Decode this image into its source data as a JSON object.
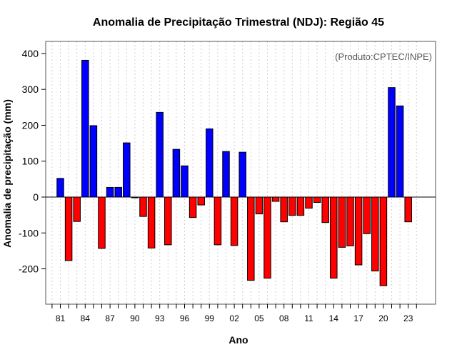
{
  "chart_data": {
    "type": "bar",
    "title": "Anomalia de Precipitação Trimestral (NDJ): Região 45",
    "xlabel": "Ano",
    "ylabel": "Anomalia de precipitação (mm)",
    "source_note": "(Produto:CPTEC/INPE)",
    "ylim": [
      -300,
      430
    ],
    "yticks": [
      -200,
      -100,
      0,
      100,
      200,
      300,
      400
    ],
    "xtick_labels": [
      "81",
      "84",
      "87",
      "90",
      "93",
      "96",
      "99",
      "02",
      "05",
      "08",
      "11",
      "14",
      "17",
      "20",
      "23"
    ],
    "categories": [
      "81",
      "82",
      "83",
      "84",
      "85",
      "86",
      "87",
      "88",
      "89",
      "90",
      "91",
      "92",
      "93",
      "94",
      "95",
      "96",
      "97",
      "98",
      "99",
      "00",
      "01",
      "02",
      "03",
      "04",
      "05",
      "06",
      "07",
      "08",
      "09",
      "10",
      "11",
      "12",
      "13",
      "14",
      "15",
      "16",
      "17",
      "18",
      "19",
      "20",
      "21",
      "22",
      "23"
    ],
    "values": [
      52,
      -177,
      -68,
      381,
      199,
      -143,
      27,
      27,
      151,
      -2,
      -54,
      -142,
      236,
      -133,
      133,
      87,
      -57,
      -22,
      190,
      -133,
      127,
      -135,
      125,
      -232,
      -47,
      -226,
      -12,
      -69,
      -51,
      -51,
      -31,
      -15,
      -71,
      -226,
      -140,
      -136,
      -189,
      -102,
      -206,
      -247,
      305,
      254,
      -69
    ],
    "colors": {
      "positive": "#0000ff",
      "negative": "#ff0000",
      "axis": "#000000",
      "grid": "#d0d0d0"
    },
    "grid": true
  }
}
